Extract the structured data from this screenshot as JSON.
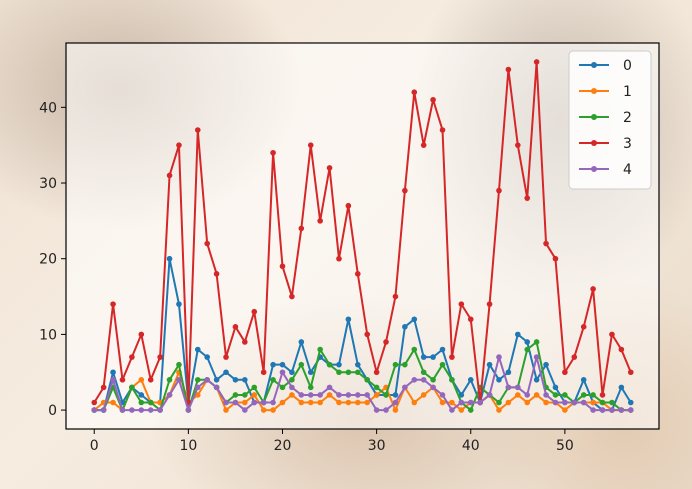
{
  "chart_data": {
    "type": "line",
    "title": "",
    "xlabel": "",
    "ylabel": "",
    "xlim": [
      -3,
      60
    ],
    "ylim": [
      -2.5,
      48.5
    ],
    "xticks": [
      0,
      10,
      20,
      30,
      40,
      50
    ],
    "yticks": [
      0,
      10,
      20,
      30,
      40
    ],
    "grid": false,
    "legend_position": "top-right",
    "x": [
      0,
      1,
      2,
      3,
      4,
      5,
      6,
      7,
      8,
      9,
      10,
      11,
      12,
      13,
      14,
      15,
      16,
      17,
      18,
      19,
      20,
      21,
      22,
      23,
      24,
      25,
      26,
      27,
      28,
      29,
      30,
      31,
      32,
      33,
      34,
      35,
      36,
      37,
      38,
      39,
      40,
      41,
      42,
      43,
      44,
      45,
      46,
      47,
      48,
      49,
      50,
      51,
      52,
      53,
      54,
      55,
      56,
      57
    ],
    "series": [
      {
        "name": "0",
        "color": "#1f77b4",
        "values": [
          0,
          0,
          5,
          1,
          3,
          2,
          1,
          1,
          20,
          14,
          1,
          8,
          7,
          4,
          5,
          4,
          4,
          1,
          1,
          6,
          6,
          5,
          9,
          5,
          7,
          6,
          6,
          12,
          6,
          4,
          2,
          2,
          2,
          11,
          12,
          7,
          7,
          8,
          4,
          2,
          4,
          1,
          6,
          4,
          5,
          10,
          9,
          4,
          6,
          3,
          1,
          1,
          4,
          1,
          0,
          0,
          3,
          1
        ]
      },
      {
        "name": "1",
        "color": "#ff7f0e",
        "values": [
          0,
          1,
          1,
          0,
          3,
          4,
          1,
          1,
          2,
          5,
          1,
          2,
          4,
          3,
          0,
          1,
          1,
          2,
          0,
          0,
          1,
          2,
          1,
          1,
          1,
          2,
          1,
          1,
          1,
          1,
          2,
          3,
          0,
          3,
          1,
          2,
          3,
          1,
          1,
          0,
          1,
          1,
          2,
          0,
          1,
          2,
          1,
          2,
          1,
          1,
          0,
          1,
          1,
          1,
          1,
          0,
          0,
          0
        ]
      },
      {
        "name": "2",
        "color": "#2ca02c",
        "values": [
          0,
          0,
          3,
          0,
          3,
          1,
          1,
          0,
          4,
          6,
          0,
          4,
          4,
          3,
          1,
          2,
          2,
          3,
          1,
          4,
          3,
          4,
          6,
          3,
          8,
          6,
          5,
          5,
          5,
          4,
          3,
          2,
          6,
          6,
          8,
          5,
          4,
          6,
          4,
          1,
          0,
          3,
          2,
          1,
          3,
          3,
          8,
          9,
          3,
          2,
          2,
          1,
          2,
          2,
          1,
          1,
          0,
          0
        ]
      },
      {
        "name": "3",
        "color": "#d62728",
        "values": [
          1,
          3,
          14,
          4,
          7,
          10,
          4,
          7,
          31,
          35,
          1,
          37,
          22,
          18,
          7,
          11,
          9,
          13,
          5,
          34,
          19,
          15,
          24,
          35,
          25,
          32,
          20,
          27,
          18,
          10,
          5,
          9,
          15,
          29,
          42,
          35,
          41,
          37,
          7,
          14,
          12,
          1,
          14,
          29,
          45,
          35,
          28,
          46,
          22,
          20,
          5,
          7,
          11,
          16,
          2,
          10,
          8,
          5
        ]
      },
      {
        "name": "4",
        "color": "#9467bd",
        "values": [
          0,
          0,
          4,
          0,
          0,
          0,
          0,
          0,
          2,
          4,
          0,
          3,
          4,
          3,
          1,
          1,
          0,
          1,
          1,
          1,
          5,
          3,
          2,
          2,
          2,
          3,
          2,
          2,
          2,
          2,
          0,
          0,
          1,
          3,
          4,
          4,
          3,
          2,
          0,
          1,
          1,
          1,
          2,
          7,
          3,
          3,
          2,
          7,
          2,
          1,
          1,
          1,
          1,
          0,
          0,
          0,
          0,
          0
        ]
      }
    ]
  }
}
